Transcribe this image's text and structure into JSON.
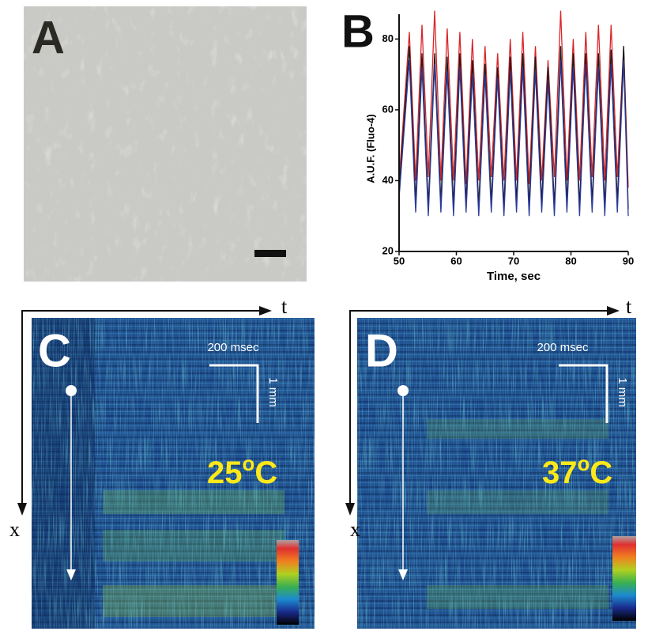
{
  "panels": {
    "a": {
      "label": "A"
    },
    "b": {
      "label": "B"
    },
    "c": {
      "label": "C",
      "time_axis": "t",
      "space_axis": "x",
      "time_scale": "200 msec",
      "space_scale": "1 mm",
      "temperature": [
        "25",
        "o",
        "C"
      ]
    },
    "d": {
      "label": "D",
      "time_axis": "t",
      "space_axis": "x",
      "time_scale": "200 msec",
      "space_scale": "1 mm",
      "temperature": [
        "37",
        "o",
        "C"
      ]
    }
  },
  "chart_data": {
    "type": "line",
    "xlabel": "Time, sec",
    "ylabel": "A.U.F. (Fluo-4)",
    "xlim": [
      50,
      90
    ],
    "ylim": [
      20,
      87
    ],
    "xticks": [
      50,
      60,
      70,
      80,
      90
    ],
    "yticks": [
      20,
      40,
      60,
      80
    ],
    "x": [
      50,
      51.8,
      52.9,
      54.0,
      55.1,
      56.2,
      57.3,
      58.4,
      59.5,
      60.6,
      61.7,
      62.8,
      63.9,
      65.0,
      66.1,
      67.2,
      68.3,
      69.4,
      70.5,
      71.6,
      72.7,
      73.8,
      74.9,
      76.0,
      77.1,
      78.2,
      79.3,
      80.4,
      81.5,
      82.6,
      83.7,
      84.8,
      85.9,
      87.0,
      88.1,
      89.2,
      90
    ],
    "series": [
      {
        "color": "#d8262a",
        "values": [
          40,
          82,
          40,
          84,
          41,
          88,
          40,
          83,
          40,
          82,
          39,
          80,
          40,
          78,
          41,
          76,
          40,
          80,
          40,
          82,
          39,
          78,
          40,
          74,
          41,
          88,
          40,
          80,
          40,
          82,
          41,
          84,
          40,
          84,
          41,
          78,
          38
        ]
      },
      {
        "color": "#1a1a1a",
        "values": [
          37,
          78,
          34,
          76,
          33,
          76,
          34,
          75,
          33,
          76,
          34,
          74,
          33,
          73,
          34,
          72,
          33,
          75,
          34,
          76,
          33,
          75,
          34,
          72,
          33,
          78,
          34,
          76,
          33,
          76,
          34,
          76,
          33,
          77,
          34,
          78,
          32
        ]
      },
      {
        "color": "#2b3a9a",
        "values": [
          35,
          74,
          31,
          72,
          30,
          73,
          31,
          71,
          30,
          72,
          31,
          70,
          30,
          70,
          31,
          69,
          30,
          71,
          31,
          72,
          30,
          71,
          31,
          68,
          30,
          74,
          31,
          72,
          30,
          73,
          31,
          72,
          30,
          73,
          31,
          74,
          30
        ]
      }
    ]
  }
}
